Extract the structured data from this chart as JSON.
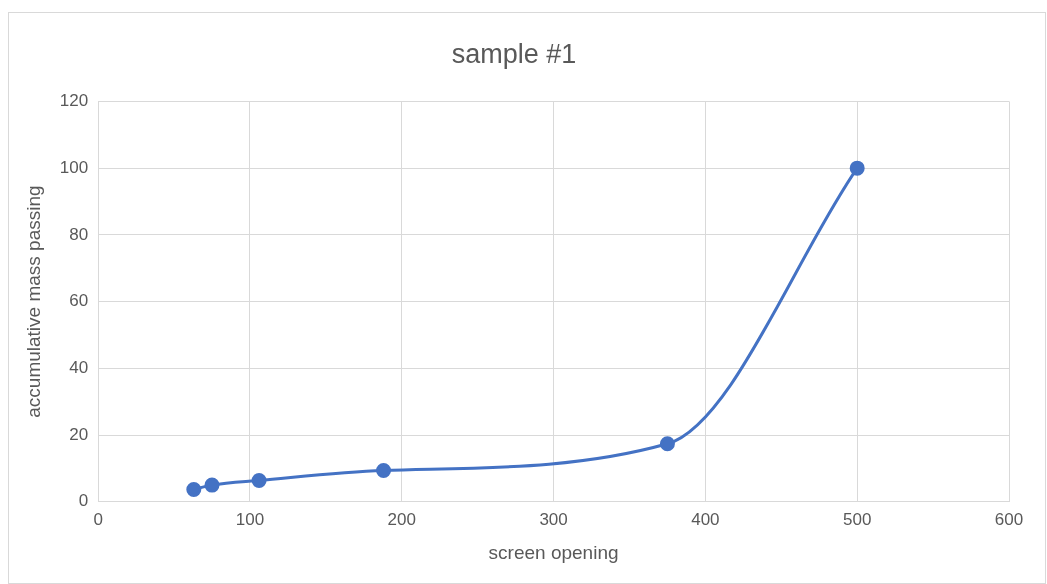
{
  "chart_data": {
    "type": "line",
    "title": "sample #1",
    "xlabel": "screen opening",
    "ylabel": "accumulative mass passing",
    "x": [
      63,
      75,
      106,
      188,
      375,
      500
    ],
    "series": [
      {
        "color": "#4472c4",
        "values": [
          3.7,
          5,
          6.4,
          9.4,
          17.4,
          100
        ]
      }
    ],
    "xlim": [
      0,
      600
    ],
    "xticks": [
      0,
      100,
      200,
      300,
      400,
      500,
      600
    ],
    "ylim": [
      0,
      120
    ],
    "yticks": [
      0,
      20,
      40,
      60,
      80,
      100,
      120
    ],
    "grid": true,
    "legend": false,
    "marker": "circle",
    "line_style": "solid"
  }
}
